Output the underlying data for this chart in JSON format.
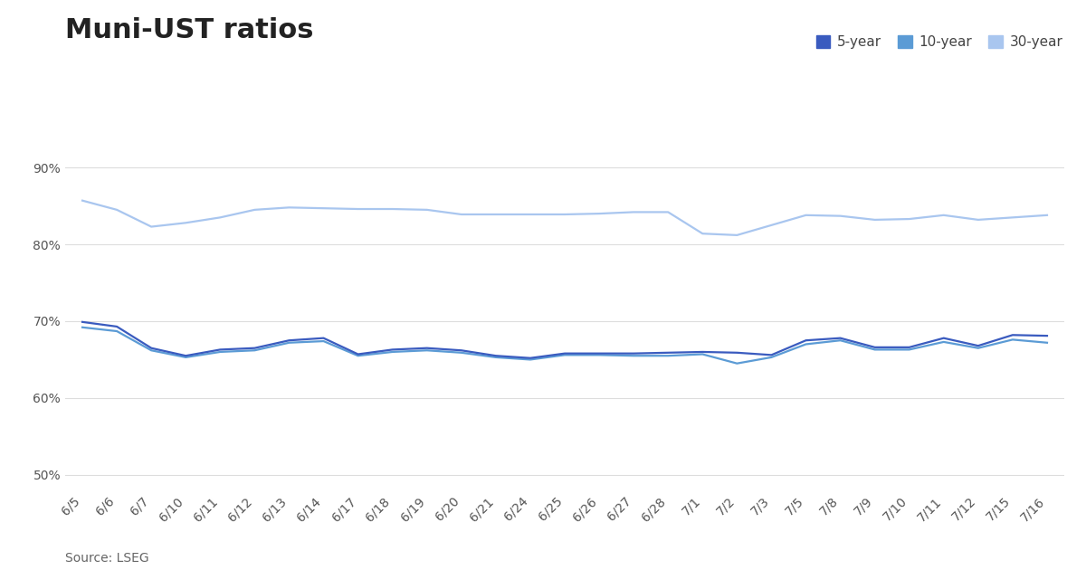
{
  "title": "Muni-UST ratios",
  "source": "Source: LSEG",
  "x_labels": [
    "6/5",
    "6/6",
    "6/7",
    "6/10",
    "6/11",
    "6/12",
    "6/13",
    "6/14",
    "6/17",
    "6/18",
    "6/19",
    "6/20",
    "6/21",
    "6/24",
    "6/25",
    "6/26",
    "6/27",
    "6/28",
    "7/1",
    "7/2",
    "7/3",
    "7/5",
    "7/8",
    "7/9",
    "7/10",
    "7/11",
    "7/12",
    "7/15",
    "7/16"
  ],
  "five_year": [
    69.9,
    69.3,
    66.5,
    65.5,
    66.3,
    66.5,
    67.5,
    67.8,
    65.7,
    66.3,
    66.5,
    66.2,
    65.5,
    65.2,
    65.8,
    65.8,
    65.8,
    65.9,
    66.0,
    65.9,
    65.6,
    67.5,
    67.8,
    66.6,
    66.6,
    67.8,
    66.8,
    68.2,
    68.1
  ],
  "ten_year": [
    69.2,
    68.7,
    66.2,
    65.3,
    66.0,
    66.2,
    67.2,
    67.4,
    65.5,
    66.0,
    66.2,
    65.9,
    65.3,
    65.0,
    65.6,
    65.6,
    65.5,
    65.5,
    65.7,
    64.5,
    65.3,
    67.0,
    67.5,
    66.3,
    66.3,
    67.3,
    66.5,
    67.6,
    67.2
  ],
  "thirty_year": [
    85.7,
    84.5,
    82.3,
    82.8,
    83.5,
    84.5,
    84.8,
    84.7,
    84.6,
    84.6,
    84.5,
    83.9,
    83.9,
    83.9,
    83.9,
    84.0,
    84.2,
    84.2,
    81.4,
    81.2,
    82.5,
    83.8,
    83.7,
    83.2,
    83.3,
    83.8,
    83.2,
    83.5,
    83.8
  ],
  "color_5yr": "#3a5bbf",
  "color_10yr": "#5b9bd5",
  "color_30yr": "#a9c6ef",
  "ylim": [
    48,
    94
  ],
  "yticks": [
    50,
    60,
    70,
    80,
    90
  ],
  "ytick_labels": [
    "50%",
    "60%",
    "70%",
    "80%",
    "90%"
  ],
  "background_color": "#ffffff",
  "grid_color": "#dddddd",
  "title_fontsize": 22,
  "legend_fontsize": 11,
  "tick_fontsize": 10,
  "source_fontsize": 10
}
